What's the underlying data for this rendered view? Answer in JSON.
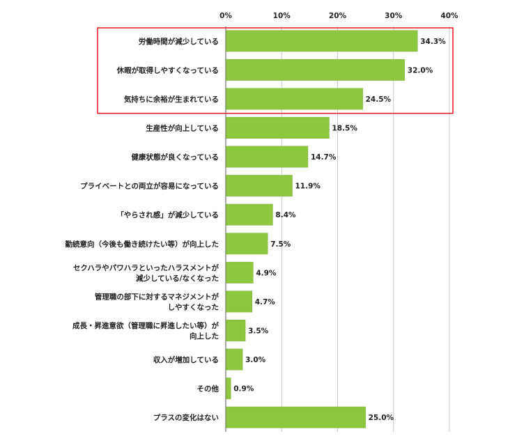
{
  "chart_data": {
    "type": "bar",
    "orientation": "horizontal",
    "title": "",
    "xlabel": "",
    "ylabel": "",
    "xlim": [
      0,
      40
    ],
    "ticks": [
      "0%",
      "10%",
      "20%",
      "30%",
      "40%"
    ],
    "tick_values": [
      0,
      10,
      20,
      30,
      40
    ],
    "grid": true,
    "bar_color": "#8dc63f",
    "highlight_color": "#e8242c",
    "highlight_count": 3,
    "categories": [
      [
        "労働時間が減少している"
      ],
      [
        "休暇が取得しやすくなっている"
      ],
      [
        "気持ちに余裕が生まれている"
      ],
      [
        "生産性が向上している"
      ],
      [
        "健康状態が良くなっている"
      ],
      [
        "プライベートとの両立が容易になっている"
      ],
      [
        "「やらされ感」が減少している"
      ],
      [
        "勤続意向（今後も働き続けたい等）が向上した"
      ],
      [
        "セクハラやパワハラといったハラスメントが",
        "減少している/なくなった"
      ],
      [
        "管理職の部下に対するマネジメントが",
        "しやすくなった"
      ],
      [
        "成長・昇進意欲（管理職に昇進したい等）が",
        "向上した"
      ],
      [
        "収入が増加している"
      ],
      [
        "その他"
      ],
      [
        "プラスの変化はない"
      ]
    ],
    "values": [
      34.3,
      32.0,
      24.5,
      18.5,
      14.7,
      11.9,
      8.4,
      7.5,
      4.9,
      4.7,
      3.5,
      3.0,
      0.9,
      25.0
    ],
    "value_labels": [
      "34.3%",
      "32.0%",
      "24.5%",
      "18.5%",
      "14.7%",
      "11.9%",
      "8.4%",
      "7.5%",
      "4.9%",
      "4.7%",
      "3.5%",
      "3.0%",
      "0.9%",
      "25.0%"
    ]
  }
}
